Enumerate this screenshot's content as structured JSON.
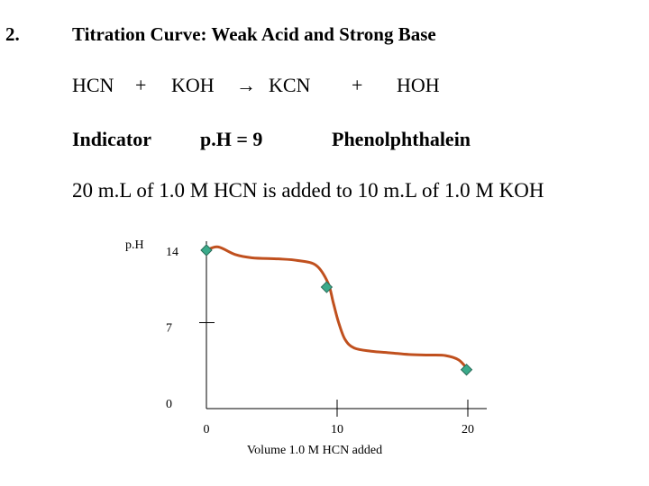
{
  "header": {
    "number": "2.",
    "title": "Titration Curve: Weak Acid and Strong Base"
  },
  "equation": {
    "reactant1": "HCN",
    "plus1": "+",
    "reactant2": "KOH",
    "arrow": "→",
    "product1": "KCN",
    "plus2": "+",
    "product2": "HOH"
  },
  "indicator": {
    "label": "Indicator",
    "ph_text": "p.H  =  9",
    "name": "Phenolphthalein"
  },
  "statement": "20 m.L  of 1.0 M HCN  is added to 10  m.L of 1.0 M KOH",
  "chart_data": {
    "type": "line",
    "title": "",
    "xlabel": "Volume 1.0 M HCN added",
    "ylabel": "p.H",
    "xlim": [
      0,
      20
    ],
    "ylim": [
      0,
      14
    ],
    "x_ticks": [
      0,
      10,
      20
    ],
    "x_tick_labels": [
      "0",
      "10",
      "20"
    ],
    "y_ticks": [
      0,
      7,
      14
    ],
    "y_tick_labels": [
      "0",
      "7",
      "14"
    ],
    "grid": false,
    "series": [
      {
        "color": "#c0501e",
        "x": [
          0,
          0.9,
          2.2,
          3.5,
          5.5,
          7.0,
          8.4,
          9.3,
          9.7,
          10.1,
          10.6,
          11.3,
          12.6,
          14.1,
          15.5,
          17.0,
          18.3,
          19.3,
          20.0
        ],
        "y": [
          14.0,
          14.3,
          13.6,
          13.3,
          13.2,
          13.05,
          12.6,
          11.0,
          9.2,
          7.4,
          5.8,
          5.0,
          4.7,
          4.55,
          4.4,
          4.35,
          4.3,
          3.9,
          3.0
        ]
      }
    ],
    "markers": {
      "color": "#3aaa8a",
      "x": [
        0,
        9.2,
        19.9
      ],
      "y": [
        14.0,
        10.6,
        3.0
      ]
    },
    "short_ticks_y": [
      7
    ]
  }
}
